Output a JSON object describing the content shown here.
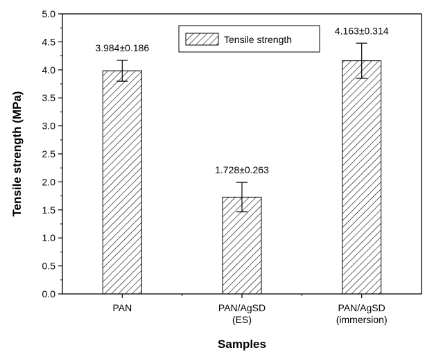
{
  "chart_data": {
    "type": "bar",
    "categories": [
      [
        "PAN"
      ],
      [
        "PAN/AgSD",
        "(ES)"
      ],
      [
        "PAN/AgSD",
        "(immersion)"
      ]
    ],
    "series": [
      {
        "name": "Tensile strength",
        "values": [
          3.984,
          1.728,
          4.163
        ],
        "errors": [
          0.186,
          0.263,
          0.314
        ],
        "data_labels": [
          "3.984±0.186",
          "1.728±0.263",
          "4.163±0.314"
        ]
      }
    ],
    "xlabel": "Samples",
    "ylabel": "Tensile strength (MPa)",
    "ylim": [
      0,
      5.0
    ],
    "yticks": [
      "0.0",
      "0.5",
      "1.0",
      "1.5",
      "2.0",
      "2.5",
      "3.0",
      "3.5",
      "4.0",
      "4.5",
      "5.0"
    ],
    "bar_fill": "hatched",
    "legend_position": "top-center",
    "grid": false,
    "colors": {
      "bar_stroke": "#000000",
      "hatch": "#000000",
      "background": "#ffffff"
    }
  }
}
